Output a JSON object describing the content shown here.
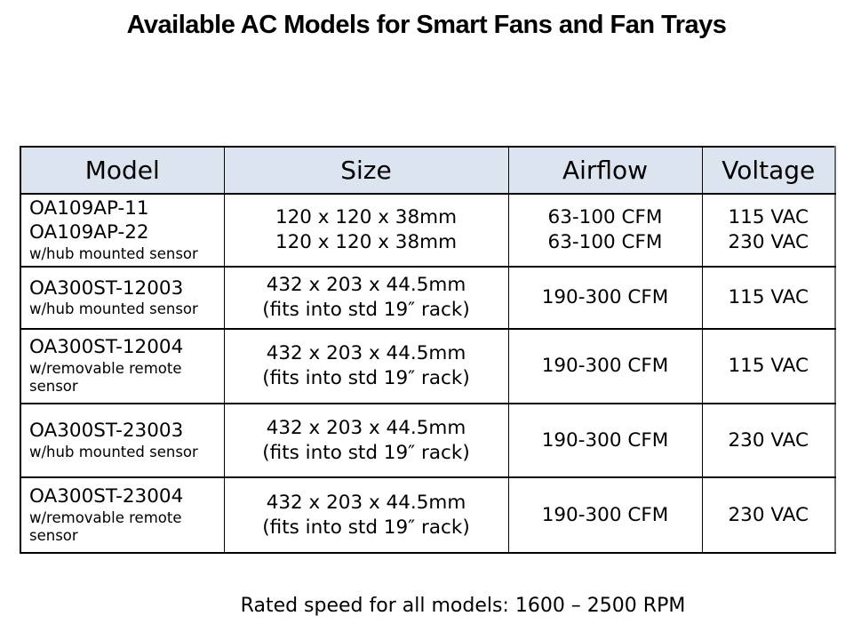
{
  "title": "Available AC Models for Smart Fans and Fan Trays",
  "table": {
    "headers": [
      "Model",
      "Size",
      "Airflow",
      "Voltage"
    ],
    "rows": [
      {
        "models": [
          "OA109AP-11",
          "OA109AP-22"
        ],
        "note": "w/hub mounted sensor",
        "size": [
          "120 x 120 x 38mm",
          "120 x 120 x 38mm"
        ],
        "airflow": [
          "63-100 CFM",
          "63-100 CFM"
        ],
        "voltage": [
          "115 VAC",
          "230 VAC"
        ]
      },
      {
        "models": [
          "OA300ST-12003"
        ],
        "note": "w/hub mounted sensor",
        "size": [
          "432 x 203 x 44.5mm",
          "(fits into std 19″ rack)"
        ],
        "airflow": [
          "190-300 CFM"
        ],
        "voltage": [
          "115 VAC"
        ]
      },
      {
        "models": [
          "OA300ST-12004"
        ],
        "note": "w/removable remote sensor",
        "size": [
          "432 x 203 x 44.5mm",
          "(fits into std 19″ rack)"
        ],
        "airflow": [
          "190-300 CFM"
        ],
        "voltage": [
          "115 VAC"
        ]
      },
      {
        "models": [
          "OA300ST-23003"
        ],
        "note": "w/hub mounted sensor",
        "size": [
          "432 x 203 x 44.5mm",
          "(fits into std 19″ rack)"
        ],
        "airflow": [
          "190-300 CFM"
        ],
        "voltage": [
          "230 VAC"
        ]
      },
      {
        "models": [
          "OA300ST-23004"
        ],
        "note": "w/removable remote sensor",
        "size": [
          "432 x 203 x 44.5mm",
          "(fits into std 19″ rack)"
        ],
        "airflow": [
          "190-300 CFM"
        ],
        "voltage": [
          "230 VAC"
        ]
      }
    ]
  },
  "footer": "Rated speed for all models: 1600 – 2500 RPM",
  "colors": {
    "header_bg": "#dce4f0",
    "border": "#000000",
    "right_edge_border": "#6f6f6f",
    "text": "#000000"
  }
}
